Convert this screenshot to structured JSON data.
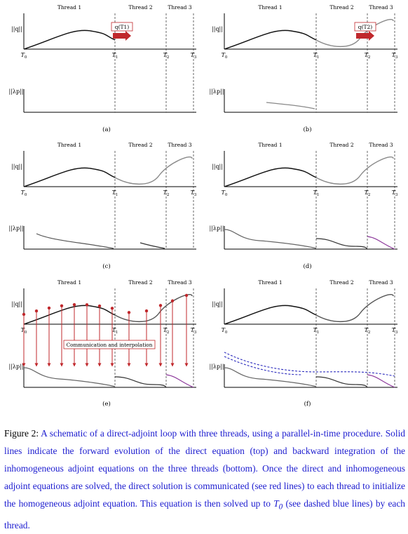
{
  "figure": {
    "thread_labels": [
      "Thread 1",
      "Thread 2",
      "Thread 3"
    ],
    "time_labels": [
      "T0",
      "T1",
      "T2",
      "T3"
    ],
    "y_label_top": "||q||",
    "y_label_bottom": "||λp||",
    "markers": {
      "a": "q(T1)",
      "b": "q(T2)"
    },
    "panel_labels": [
      "(a)",
      "(b)",
      "(c)",
      "(d)",
      "(e)",
      "(f)"
    ],
    "comm_label": "Communication and interpolation",
    "colors": {
      "forward": "#111111",
      "forward_gray": "#8a8a8a",
      "adjoint_purple": "#8e3b9c",
      "red": "#c0282c",
      "blue": "#2b2bbd"
    }
  },
  "caption": {
    "prefix": "Figure 2:",
    "text": "A schematic of a direct-adjoint loop with three threads, using a parallel-in-time procedure. Solid lines indicate the forward evolution of the direct equation (top) and backward integration of the inhomogeneous adjoint equations on the three threads (bottom). Once the direct and inhomogeneous adjoint equations are solved, the direct solution is communicated (see red lines) to each thread to initialize the homogeneous adjoint equation. This equation is then solved up to",
    "t0": "T",
    "t0_sub": "0",
    "suffix": "(see dashed blue lines) by each thread."
  }
}
